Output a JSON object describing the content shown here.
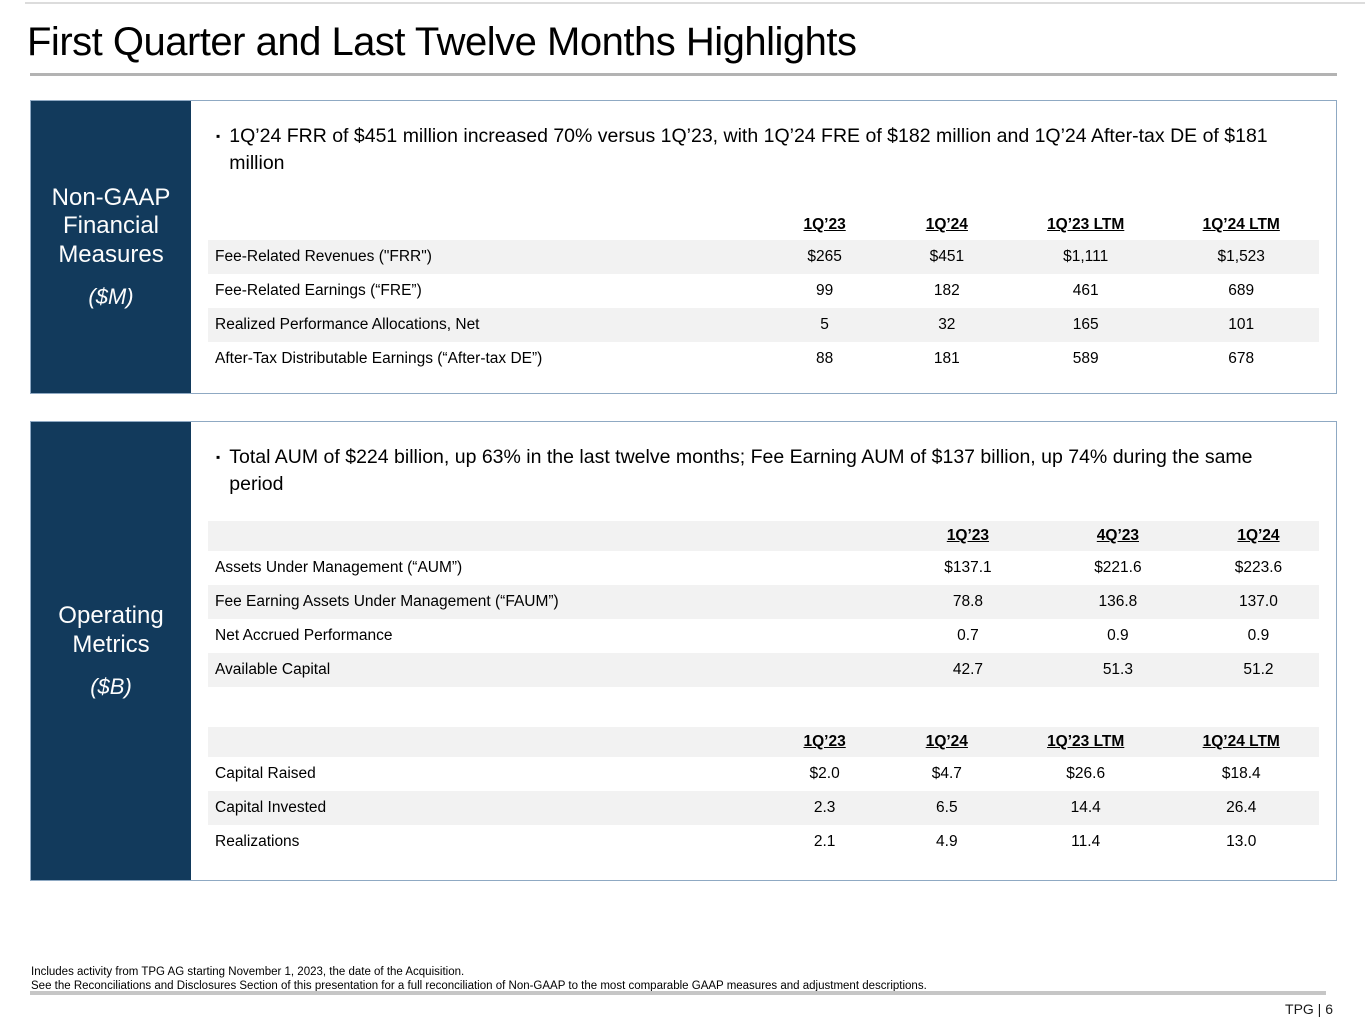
{
  "title": "First Quarter and Last Twelve Months Highlights",
  "colors": {
    "navy": "#123a5c",
    "panel_border": "#8fa9c3",
    "row_shade": "#f2f2f2",
    "title_rule": "#b3b3b3"
  },
  "bullet_marker": "▪",
  "non_gaap": {
    "sidebar_title": "Non-GAAP Financial Measures",
    "sidebar_unit": "($M)",
    "bullet": "1Q’24 FRR of $451 million increased 70% versus 1Q’23, with 1Q’24 FRE of $182 million and 1Q’24 After-tax DE of $181 million",
    "table": {
      "headers": [
        "",
        "1Q’23",
        "1Q’24",
        "1Q’23 LTM",
        "1Q’24 LTM"
      ],
      "header_shaded": false,
      "rows": [
        {
          "label": "Fee-Related Revenues (\"FRR\")",
          "values": [
            "$265",
            "$451",
            "$1,111",
            "$1,523"
          ],
          "shaded": true
        },
        {
          "label": "Fee-Related Earnings (“FRE”)",
          "values": [
            "99",
            "182",
            "461",
            "689"
          ],
          "shaded": false
        },
        {
          "label": "Realized Performance Allocations, Net",
          "values": [
            "5",
            "32",
            "165",
            "101"
          ],
          "shaded": true
        },
        {
          "label": "After-Tax Distributable Earnings (“After-tax DE”)",
          "values": [
            "88",
            "181",
            "589",
            "678"
          ],
          "shaded": false
        }
      ]
    }
  },
  "operating": {
    "sidebar_title": "Operating Metrics",
    "sidebar_unit": "($B)",
    "bullet": "Total AUM of $224 billion, up 63% in the last twelve months; Fee Earning AUM of $137 billion, up 74% during the same period",
    "table_aum": {
      "headers": [
        "",
        "1Q’23",
        "4Q’23",
        "1Q’24"
      ],
      "header_shaded": true,
      "rows": [
        {
          "label": "Assets Under Management (“AUM”)",
          "values": [
            "$137.1",
            "$221.6",
            "$223.6"
          ],
          "shaded": false
        },
        {
          "label": "Fee Earning Assets Under Management (“FAUM”)",
          "values": [
            "78.8",
            "136.8",
            "137.0"
          ],
          "shaded": true
        },
        {
          "label": "Net Accrued Performance",
          "values": [
            "0.7",
            "0.9",
            "0.9"
          ],
          "shaded": false
        },
        {
          "label": "Available Capital",
          "values": [
            "42.7",
            "51.3",
            "51.2"
          ],
          "shaded": true
        }
      ]
    },
    "table_capital": {
      "headers": [
        "",
        "1Q’23",
        "1Q’24",
        "1Q’23 LTM",
        "1Q’24 LTM"
      ],
      "header_shaded": true,
      "rows": [
        {
          "label": "Capital Raised",
          "values": [
            "$2.0",
            "$4.7",
            "$26.6",
            "$18.4"
          ],
          "shaded": false
        },
        {
          "label": "Capital Invested",
          "values": [
            "2.3",
            "6.5",
            "14.4",
            "26.4"
          ],
          "shaded": true
        },
        {
          "label": "Realizations",
          "values": [
            "2.1",
            "4.9",
            "11.4",
            "13.0"
          ],
          "shaded": false
        }
      ]
    }
  },
  "footnotes": [
    "Includes activity from TPG AG starting November 1, 2023, the date of the Acquisition.",
    "See the Reconciliations and Disclosures Section of this presentation for a full reconciliation of Non-GAAP to the most comparable GAAP measures and adjustment descriptions."
  ],
  "footer": "TPG | 6"
}
